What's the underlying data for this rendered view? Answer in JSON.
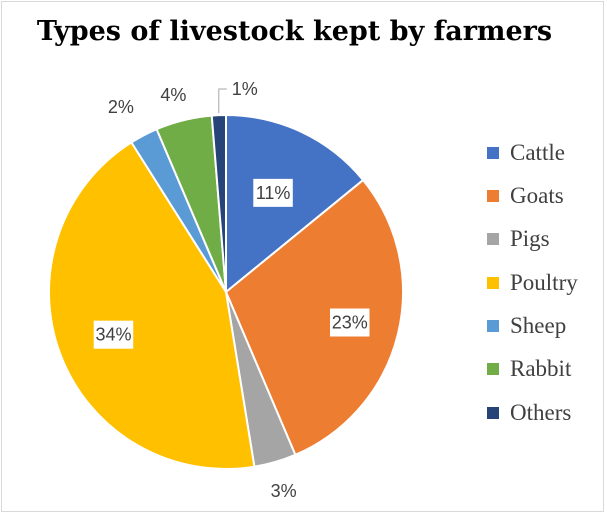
{
  "chart_data": {
    "type": "pie",
    "title": "Types of livestock kept by farmers",
    "categories": [
      "Cattle",
      "Goats",
      "Pigs",
      "Poultry",
      "Sheep",
      "Rabbit",
      "Others"
    ],
    "values": [
      11,
      23,
      3,
      34,
      2,
      4,
      1
    ],
    "data_labels": [
      "11%",
      "23%",
      "3%",
      "34%",
      "2%",
      "4%",
      "1%"
    ],
    "colors": [
      "#4472c4",
      "#ed7d31",
      "#a5a5a5",
      "#ffc000",
      "#5b9bd5",
      "#70ad47",
      "#264478"
    ],
    "legend": {
      "position": "right",
      "entries": [
        "Cattle",
        "Goats",
        "Pigs",
        "Poultry",
        "Sheep",
        "Rabbit",
        "Others"
      ]
    },
    "start_angle_deg": 0,
    "direction": "clockwise"
  }
}
